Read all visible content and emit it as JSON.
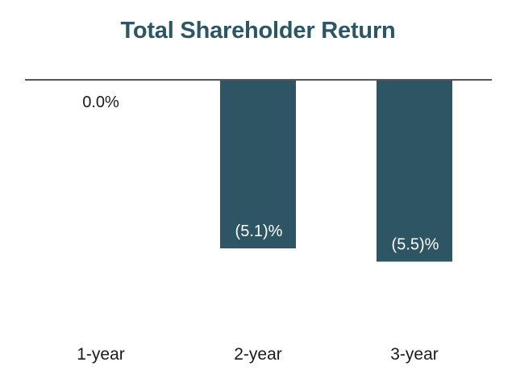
{
  "chart_data": {
    "type": "bar",
    "title": "Total Shareholder Return",
    "categories": [
      "1-year",
      "2-year",
      "3-year"
    ],
    "values": [
      0.0,
      -5.1,
      -5.5
    ],
    "value_labels": [
      "0.0%",
      "(5.1)%",
      "(5.5)%"
    ],
    "ylim": [
      -5.5,
      0
    ],
    "grid": false,
    "legend": "none",
    "bar_color": "#2e5563",
    "axis_color": "#555555",
    "label_color_inside": "#ffffff",
    "label_color_outside": "#1a1a1a"
  }
}
